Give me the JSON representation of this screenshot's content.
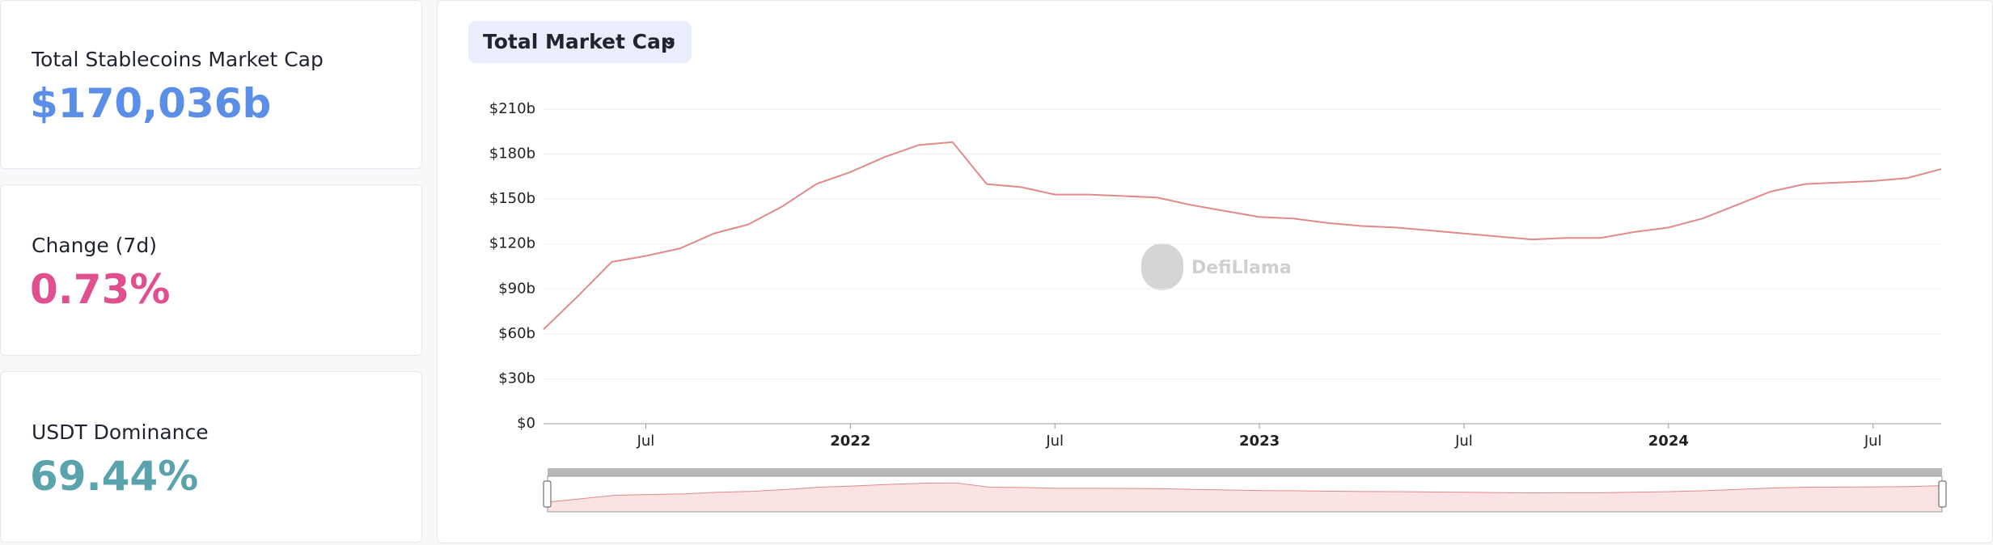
{
  "stats": [
    {
      "label": "Total Stablecoins Market Cap",
      "value": "$170,036b"
    },
    {
      "label": "Change (7d)",
      "value": "0.73%"
    },
    {
      "label": "USDT Dominance",
      "value": "69.44%"
    }
  ],
  "dropdown": "Total Market Cap",
  "watermark": "DefiLlama",
  "chart_data": {
    "type": "line",
    "color": "#e08a8a",
    "grid": true,
    "x": [
      "2021-04",
      "2021-05",
      "2021-06",
      "2021-07",
      "2021-08",
      "2021-09",
      "2021-10",
      "2021-11",
      "2021-12",
      "2022-01",
      "2022-02",
      "2022-03",
      "2022-04",
      "2022-05",
      "2022-06",
      "2022-07",
      "2022-08",
      "2022-09",
      "2022-10",
      "2022-11",
      "2022-12",
      "2023-01",
      "2023-02",
      "2023-03",
      "2023-04",
      "2023-05",
      "2023-06",
      "2023-07",
      "2023-08",
      "2023-09",
      "2023-10",
      "2023-11",
      "2023-12",
      "2024-01",
      "2024-02",
      "2024-03",
      "2024-04",
      "2024-05",
      "2024-06",
      "2024-07",
      "2024-08",
      "2024-09"
    ],
    "values": [
      63,
      85,
      108,
      112,
      117,
      127,
      133,
      145,
      160,
      168,
      178,
      186,
      188,
      160,
      158,
      153,
      153,
      152,
      151,
      146,
      142,
      138,
      137,
      134,
      132,
      131,
      129,
      127,
      125,
      123,
      124,
      124,
      128,
      131,
      137,
      146,
      155,
      160,
      161,
      162,
      164,
      170
    ],
    "xlim": [
      "2021-04",
      "2024-09"
    ],
    "xticks": [
      {
        "value": "2021-07",
        "label": "Jul"
      },
      {
        "value": "2022-01",
        "label": "2022"
      },
      {
        "value": "2022-07",
        "label": "Jul"
      },
      {
        "value": "2023-01",
        "label": "2023"
      },
      {
        "value": "2023-07",
        "label": "Jul"
      },
      {
        "value": "2024-01",
        "label": "2024"
      },
      {
        "value": "2024-07",
        "label": "Jul"
      }
    ],
    "ylim": [
      0,
      210
    ],
    "yticks": [
      {
        "value": 0,
        "label": "$0"
      },
      {
        "value": 30,
        "label": "$30b"
      },
      {
        "value": 60,
        "label": "$60b"
      },
      {
        "value": 90,
        "label": "$90b"
      },
      {
        "value": 120,
        "label": "$120b"
      },
      {
        "value": 150,
        "label": "$150b"
      },
      {
        "value": 180,
        "label": "$180b"
      },
      {
        "value": 210,
        "label": "$210b"
      }
    ]
  }
}
